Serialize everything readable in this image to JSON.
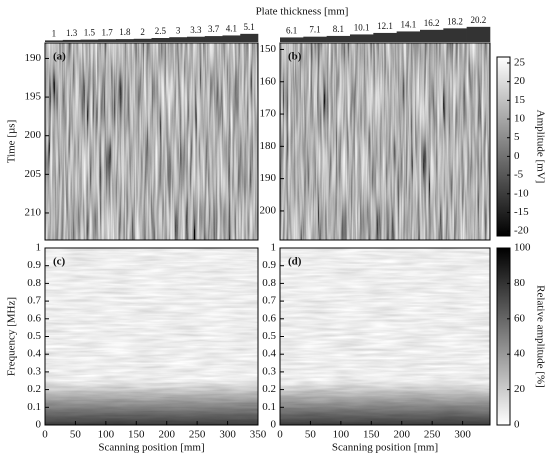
{
  "header": {
    "title": "Plate thickness [mm]"
  },
  "thickness": {
    "left": [
      1,
      1.3,
      1.5,
      1.7,
      1.8,
      2,
      2.5,
      3,
      3.3,
      3.7,
      4.1,
      5.1
    ],
    "right": [
      6.1,
      7.1,
      8.1,
      10.1,
      12.1,
      14.1,
      16.2,
      18.2,
      20.2
    ]
  },
  "chart_data": [
    {
      "type": "heatmap",
      "label": "(a)",
      "label_color": "#ffffff",
      "ylabel": "Time [µs]",
      "xlim": [
        0,
        350
      ],
      "ylim": [
        213.5,
        188
      ],
      "yticks": [
        190,
        195,
        200,
        205,
        210
      ]
    },
    {
      "type": "heatmap",
      "label": "(b)",
      "label_color": "#ffffff",
      "xlim": [
        0,
        345
      ],
      "ylim": [
        209,
        148
      ],
      "yticks": [
        150,
        160,
        170,
        180,
        190,
        200
      ],
      "colorbar": {
        "label": "Amplitude [mV]",
        "lim": [
          -21.3,
          26.6
        ],
        "ticks": [
          -20,
          -15,
          -10,
          -5,
          0,
          5,
          10,
          15,
          20,
          25
        ],
        "cmap": [
          "#000000",
          "#ffffff"
        ]
      }
    },
    {
      "type": "heatmap",
      "label": "(c)",
      "label_color": "#000000",
      "ylabel": "Frequency [MHz]",
      "xlabel": "Scanning position [mm]",
      "xlim": [
        0,
        350
      ],
      "xticks": [
        0,
        50,
        100,
        150,
        200,
        250,
        300,
        350
      ],
      "ylim": [
        0,
        1
      ],
      "yticks": [
        0,
        0.1,
        0.2,
        0.3,
        0.4,
        0.5,
        0.6,
        0.7,
        0.8,
        0.9,
        1
      ]
    },
    {
      "type": "heatmap",
      "label": "(d)",
      "label_color": "#000000",
      "xlabel": "Scanning position [mm]",
      "xlim": [
        0,
        345
      ],
      "xticks": [
        0,
        50,
        100,
        150,
        200,
        250,
        300
      ],
      "ylim": [
        0,
        1
      ],
      "yticks": [
        0,
        0.1,
        0.2,
        0.3,
        0.4,
        0.5,
        0.6,
        0.7,
        0.8,
        0.9,
        1
      ],
      "colorbar": {
        "label": "Relative amplitude [%]",
        "lim": [
          0,
          100
        ],
        "ticks": [
          0,
          20,
          40,
          60,
          80,
          100
        ],
        "cmap": [
          "#ffffff",
          "#000000"
        ]
      }
    }
  ]
}
